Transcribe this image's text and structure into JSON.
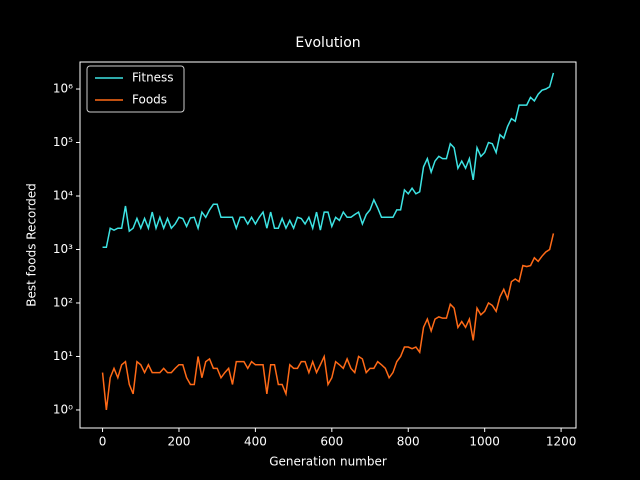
{
  "chart_data": {
    "type": "line",
    "title": "Evolution",
    "xlabel": "Generation number",
    "ylabel": "Best foods Recorded",
    "log_y": true,
    "legend": "upper left",
    "x": [
      0,
      10,
      20,
      30,
      40,
      50,
      60,
      70,
      80,
      90,
      100,
      110,
      120,
      130,
      140,
      150,
      160,
      170,
      180,
      190,
      200,
      210,
      220,
      230,
      240,
      250,
      260,
      270,
      280,
      290,
      300,
      310,
      320,
      330,
      340,
      350,
      360,
      370,
      380,
      390,
      400,
      410,
      420,
      430,
      440,
      450,
      460,
      470,
      480,
      490,
      500,
      510,
      520,
      530,
      540,
      550,
      560,
      570,
      580,
      590,
      600,
      610,
      620,
      630,
      640,
      650,
      660,
      670,
      680,
      690,
      700,
      710,
      720,
      730,
      740,
      750,
      760,
      770,
      780,
      790,
      800,
      810,
      820,
      830,
      840,
      850,
      860,
      870,
      880,
      890,
      900,
      910,
      920,
      930,
      940,
      950,
      960,
      970,
      980,
      990,
      1000,
      1010,
      1020,
      1030,
      1040,
      1050,
      1060,
      1070,
      1080,
      1090,
      1100,
      1110,
      1120,
      1130,
      1140,
      1150,
      1160,
      1170,
      1180
    ],
    "series": [
      {
        "name": "Fitness",
        "color": "#3de3e3",
        "values": [
          1100,
          1100,
          2500,
          2300,
          2500,
          2500,
          6500,
          2200,
          2500,
          3800,
          2500,
          3800,
          2500,
          5000,
          2500,
          4000,
          2500,
          3800,
          2500,
          3000,
          4000,
          3800,
          2700,
          3900,
          4000,
          2500,
          5000,
          4000,
          5500,
          7000,
          7000,
          4000,
          4000,
          4000,
          4000,
          2500,
          4000,
          4000,
          3000,
          4000,
          3000,
          4000,
          5000,
          2500,
          5000,
          2500,
          2500,
          3800,
          2500,
          3500,
          2500,
          4000,
          3800,
          3000,
          4000,
          2500,
          5000,
          2300,
          5000,
          5000,
          2700,
          4000,
          3500,
          5000,
          4000,
          4000,
          4500,
          5000,
          3000,
          4500,
          5500,
          8500,
          6000,
          4000,
          4000,
          4000,
          4000,
          5500,
          5500,
          13000,
          11000,
          14000,
          11000,
          12000,
          35000,
          50000,
          28000,
          45000,
          55000,
          50000,
          50000,
          95000,
          80000,
          33000,
          45000,
          33000,
          50000,
          20000,
          80000,
          55000,
          65000,
          100000,
          95000,
          65000,
          140000,
          120000,
          200000,
          280000,
          250000,
          500000,
          500000,
          500000,
          700000,
          600000,
          800000,
          950000,
          1000000,
          1100000,
          2000000
        ]
      },
      {
        "name": "Foods",
        "color": "#ff6a17",
        "values": [
          5,
          1,
          4,
          6,
          4,
          7,
          8,
          3,
          2,
          8,
          7,
          5,
          7,
          5,
          5,
          5,
          6,
          5,
          5,
          6,
          7,
          7,
          4,
          3,
          3,
          10,
          4,
          8,
          9,
          6,
          6,
          4,
          5,
          6,
          3,
          8,
          8,
          8,
          6,
          8,
          7,
          7,
          7,
          2,
          7,
          7,
          3,
          3,
          2,
          7,
          6,
          6,
          8,
          8,
          5,
          8,
          5,
          7,
          10,
          3,
          4,
          8,
          7,
          6,
          9,
          6,
          5,
          10,
          9,
          5,
          6,
          6,
          8,
          7,
          6,
          4,
          5,
          8,
          10,
          15,
          15,
          14,
          15,
          12,
          35,
          50,
          30,
          50,
          55,
          52,
          52,
          95,
          80,
          35,
          45,
          35,
          50,
          20,
          80,
          60,
          70,
          100,
          90,
          70,
          130,
          180,
          120,
          250,
          280,
          250,
          500,
          480,
          500,
          700,
          600,
          750,
          900,
          1000,
          2000
        ]
      }
    ],
    "xlim": [
      -59,
      1239
    ],
    "xticks": [
      0,
      200,
      400,
      600,
      800,
      1000,
      1200
    ],
    "ylim": [
      0.46,
      3200000
    ],
    "yticks": [
      {
        "value": 1,
        "label": "10⁰"
      },
      {
        "value": 10,
        "label": "10¹"
      },
      {
        "value": 100,
        "label": "10²"
      },
      {
        "value": 1000,
        "label": "10³"
      },
      {
        "value": 10000,
        "label": "10⁴"
      },
      {
        "value": 100000,
        "label": "10⁵"
      },
      {
        "value": 1000000,
        "label": "10⁶"
      }
    ]
  }
}
